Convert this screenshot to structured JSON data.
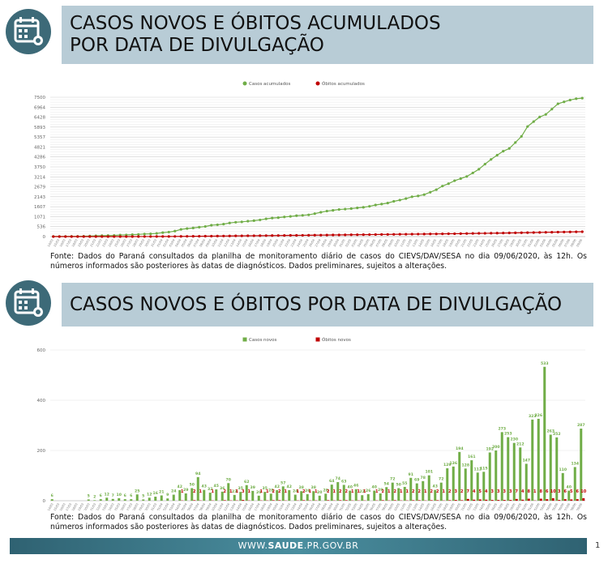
{
  "sections": [
    {
      "title_lines": [
        "CASOS NOVOS E ÓBITOS ACUMULADOS",
        "POR DATA DE DIVULGAÇÃO"
      ],
      "source": "Fonte: Dados do Paraná consultados da planilha de monitoramento diário de casos do CIEVS/DAV/SESA no dia 09/06/2020, às 12h. Os números informados são posteriores às datas de diagnósticos. Dados preliminares, sujeitos a alterações."
    },
    {
      "title_lines": [
        "CASOS NOVOS E ÓBITOS POR DATA DE DIVULGAÇÃO"
      ],
      "source": "Fonte: Dados do Paraná consultados da planilha de monitoramento diário de casos do CIEVS/DAV/SESA no dia 09/06/2020, às 12h. Os números informados são posteriores às datas de diagnósticos. Dados preliminares, sujeitos a alterações."
    }
  ],
  "chart_data": [
    {
      "type": "line",
      "grid": true,
      "legend": "top",
      "categories": [
        "14/03",
        "15/03",
        "16/03",
        "17/03",
        "18/03",
        "19/03",
        "20/03",
        "21/03",
        "22/03",
        "23/03",
        "24/03",
        "25/03",
        "26/03",
        "27/03",
        "28/03",
        "29/03",
        "30/03",
        "31/03",
        "01/04",
        "02/04",
        "03/04",
        "04/04",
        "05/04",
        "06/04",
        "07/04",
        "08/04",
        "09/04",
        "10/04",
        "11/04",
        "12/04",
        "13/04",
        "14/04",
        "15/04",
        "16/04",
        "17/04",
        "18/04",
        "19/04",
        "20/04",
        "21/04",
        "22/04",
        "23/04",
        "24/04",
        "25/04",
        "26/04",
        "27/04",
        "28/04",
        "29/04",
        "30/04",
        "01/05",
        "02/05",
        "03/05",
        "04/05",
        "05/05",
        "06/05",
        "07/05",
        "08/05",
        "09/05",
        "10/05",
        "11/05",
        "12/05",
        "13/05",
        "14/05",
        "15/05",
        "16/05",
        "17/05",
        "18/05",
        "19/05",
        "20/05",
        "21/05",
        "22/05",
        "23/05",
        "24/05",
        "25/05",
        "26/05",
        "27/05",
        "28/05",
        "29/05",
        "30/05",
        "31/05",
        "01/06",
        "02/06",
        "03/06",
        "04/06",
        "05/06",
        "06/06",
        "07/06",
        "08/06",
        "09/06"
      ],
      "series": [
        {
          "name": "Casos acumulados",
          "color": "#70ad47",
          "values": [
            6,
            6,
            6,
            11,
            13,
            19,
            31,
            38,
            48,
            54,
            60,
            85,
            90,
            102,
            118,
            139,
            148,
            172,
            214,
            243,
            293,
            387,
            430,
            462,
            507,
            543,
            613,
            636,
            671,
            733,
            772,
            792,
            827,
            855,
            897,
            954,
            996,
            1020,
            1058,
            1084,
            1122,
            1142,
            1170,
            1234,
            1308,
            1371,
            1411,
            1457,
            1479,
            1505,
            1545,
            1574,
            1628,
            1700,
            1750,
            1805,
            1896,
            1965,
            2043,
            2144,
            2187,
            2259,
            2388,
            2524,
            2718,
            2846,
            3007,
            3119,
            3234,
            3426,
            3626,
            3899,
            4152,
            4382,
            4594,
            4741,
            5064,
            5390,
            5923,
            6186,
            6438,
            6572,
            6859,
            7146,
            7250,
            7350,
            7420,
            7450
          ]
        },
        {
          "name": "Óbitos acumulados",
          "color": "#c00000",
          "values": [
            0,
            0,
            0,
            0,
            0,
            0,
            0,
            0,
            0,
            0,
            0,
            0,
            1,
            1,
            2,
            3,
            3,
            4,
            6,
            7,
            9,
            11,
            14,
            16,
            18,
            21,
            24,
            27,
            31,
            34,
            37,
            40,
            44,
            46,
            49,
            52,
            55,
            58,
            61,
            64,
            67,
            69,
            72,
            75,
            79,
            83,
            86,
            89,
            93,
            97,
            100,
            104,
            107,
            111,
            113,
            117,
            120,
            124,
            127,
            131,
            134,
            137,
            141,
            144,
            148,
            152,
            155,
            159,
            164,
            168,
            173,
            177,
            182,
            186,
            191,
            196,
            202,
            207,
            213,
            219,
            225,
            231,
            236,
            242,
            247,
            252,
            257,
            262
          ]
        }
      ],
      "ylim": [
        0,
        7500
      ],
      "yticks": [
        0,
        536,
        1071,
        1607,
        2143,
        2679,
        3214,
        3750,
        4286,
        4821,
        5357,
        5893,
        6428,
        6964,
        7500
      ]
    },
    {
      "type": "bar",
      "grid": true,
      "legend": "top",
      "categories": [
        "14/03",
        "15/03",
        "16/03",
        "17/03",
        "18/03",
        "19/03",
        "20/03",
        "21/03",
        "22/03",
        "23/03",
        "24/03",
        "25/03",
        "26/03",
        "27/03",
        "28/03",
        "29/03",
        "30/03",
        "31/03",
        "01/04",
        "02/04",
        "03/04",
        "04/04",
        "05/04",
        "06/04",
        "07/04",
        "08/04",
        "09/04",
        "10/04",
        "11/04",
        "12/04",
        "13/04",
        "14/04",
        "15/04",
        "16/04",
        "17/04",
        "18/04",
        "19/04",
        "20/04",
        "21/04",
        "22/04",
        "23/04",
        "24/04",
        "25/04",
        "26/04",
        "27/04",
        "28/04",
        "29/04",
        "30/04",
        "01/05",
        "02/05",
        "03/05",
        "04/05",
        "05/05",
        "06/05",
        "07/05",
        "08/05",
        "09/05",
        "10/05",
        "11/05",
        "12/05",
        "13/05",
        "14/05",
        "15/05",
        "16/05",
        "17/05",
        "18/05",
        "19/05",
        "20/05",
        "21/05",
        "22/05",
        "23/05",
        "24/05",
        "25/05",
        "26/05",
        "27/05",
        "28/05",
        "29/05",
        "30/05",
        "31/05",
        "01/06",
        "02/06",
        "03/06",
        "04/06",
        "05/06",
        "06/06",
        "07/06",
        "08/06",
        "09/06"
      ],
      "series": [
        {
          "name": "Casos novos",
          "color": "#70ad47",
          "values": [
            6,
            0,
            0,
            0,
            0,
            0,
            5,
            2,
            6,
            12,
            7,
            10,
            6,
            6,
            25,
            5,
            12,
            16,
            21,
            9,
            24,
            42,
            29,
            50,
            94,
            43,
            32,
            45,
            36,
            70,
            23,
            35,
            62,
            39,
            20,
            35,
            28,
            42,
            57,
            42,
            24,
            38,
            26,
            38,
            20,
            28,
            64,
            74,
            63,
            40,
            46,
            22,
            26,
            40,
            29,
            54,
            72,
            50,
            55,
            91,
            69,
            78,
            101,
            43,
            72,
            129,
            136,
            194,
            128,
            161,
            112,
            115,
            192,
            200,
            273,
            253,
            230,
            212,
            147,
            323,
            326,
            533,
            263,
            252,
            110,
            40,
            134,
            287
          ]
        },
        {
          "name": "Óbitos novos",
          "color": "#c00000",
          "values": [
            0,
            0,
            0,
            0,
            0,
            0,
            0,
            0,
            0,
            0,
            0,
            0,
            0,
            0,
            0,
            0,
            0,
            0,
            0,
            0,
            0,
            1,
            0,
            2,
            1,
            0,
            1,
            0,
            2,
            1,
            1,
            3,
            1,
            0,
            1,
            1,
            2,
            2,
            1,
            0,
            1,
            2,
            1,
            1,
            0,
            2,
            1,
            2,
            2,
            1,
            1,
            1,
            0,
            1,
            2,
            1,
            2,
            1,
            1,
            2,
            2,
            1,
            2,
            2,
            1,
            2,
            3,
            2,
            7,
            4,
            5,
            4,
            3,
            3,
            3,
            3,
            7,
            4,
            8,
            1,
            8,
            6,
            10,
            3,
            6,
            5,
            6,
            10
          ]
        }
      ],
      "ylim": [
        0,
        600
      ],
      "yticks": [
        0,
        200,
        400,
        600
      ]
    }
  ],
  "footer": {
    "url_parts": [
      "WWW.",
      "SAUDE",
      ".PR.GOV.BR"
    ],
    "page": "1"
  }
}
